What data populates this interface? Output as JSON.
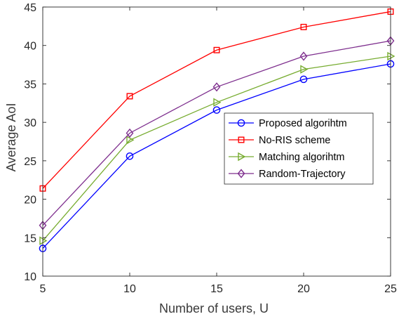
{
  "chart_data": {
    "type": "line",
    "title": "",
    "xlabel": "Number of  users, U",
    "ylabel": "Average AoI",
    "x": [
      5,
      10,
      15,
      20,
      25
    ],
    "xlim": [
      5,
      25
    ],
    "ylim": [
      10,
      45
    ],
    "xticks": [
      "5",
      "10",
      "15",
      "20",
      "25"
    ],
    "yticks": [
      "10",
      "15",
      "20",
      "25",
      "30",
      "35",
      "40",
      "45"
    ],
    "grid": false,
    "legend_position": "center-right",
    "series": [
      {
        "name": "Proposed algorihtm",
        "color": "#0000ff",
        "marker": "circle",
        "values": [
          13.6,
          25.6,
          31.6,
          35.6,
          37.6
        ]
      },
      {
        "name": "No-RIS scheme",
        "color": "#ff0000",
        "marker": "square",
        "values": [
          21.4,
          33.4,
          39.4,
          42.4,
          44.4
        ]
      },
      {
        "name": "Matching algorihtm",
        "color": "#77ac30",
        "marker": "triangle-right",
        "values": [
          14.6,
          27.7,
          32.6,
          36.9,
          38.6
        ]
      },
      {
        "name": "Random-Trajectory",
        "color": "#7e2f8e",
        "marker": "diamond",
        "values": [
          16.6,
          28.6,
          34.6,
          38.6,
          40.6
        ]
      }
    ]
  }
}
